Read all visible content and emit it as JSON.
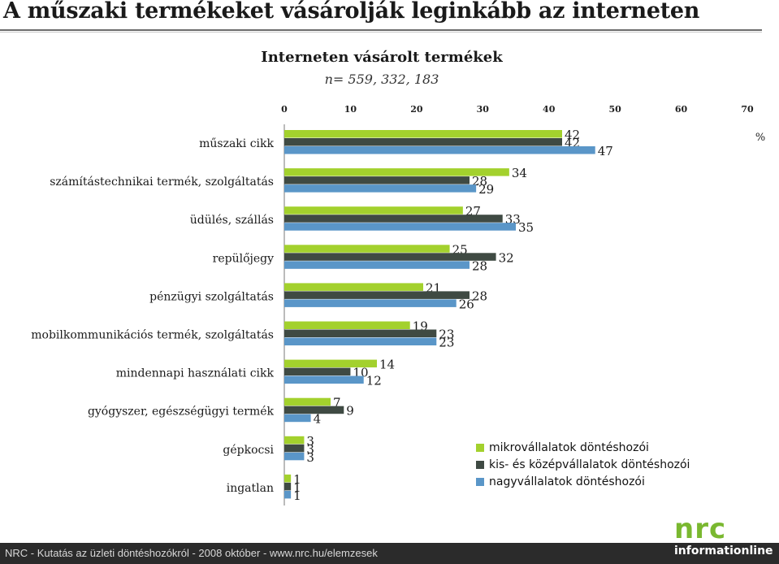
{
  "page": {
    "headline": "A műszaki termékeket vásárolják leginkább az interneten",
    "footer": "NRC - Kutatás az üzleti döntéshozókról - 2008 október - www.nrc.hu/elemzesek",
    "logo_top": "nrc",
    "logo_bottom": "informationline"
  },
  "chart_data": {
    "type": "bar",
    "orientation": "horizontal",
    "title": "Interneten vásárolt termékek",
    "subtitle": "n= 559, 332, 183",
    "unit_label": "%",
    "xlim": [
      0,
      70
    ],
    "xticks": [
      0,
      10,
      20,
      30,
      40,
      50,
      60,
      70
    ],
    "grid": false,
    "legend_position": "bottom-right",
    "categories": [
      "műszaki cikk",
      "számítástechnikai termék, szolgáltatás",
      "üdülés, szállás",
      "repülőjegy",
      "pénzügyi szolgáltatás",
      "mobilkommunikációs termék, szolgáltatás",
      "mindennapi használati cikk",
      "gyógyszer, egészségügyi termék",
      "gépkocsi",
      "ingatlan"
    ],
    "series": [
      {
        "name": "mikrovállalatok döntéshozói",
        "color": "#a3d12d",
        "values": [
          42,
          34,
          27,
          25,
          21,
          19,
          14,
          7,
          3,
          1
        ]
      },
      {
        "name": "kis- és középvállalatok döntéshozói",
        "color": "#3f4a43",
        "values": [
          42,
          28,
          33,
          32,
          28,
          23,
          10,
          9,
          3,
          1
        ]
      },
      {
        "name": "nagyvállalatok döntéshozói",
        "color": "#5a96c8",
        "values": [
          47,
          29,
          35,
          28,
          26,
          23,
          12,
          4,
          3,
          1
        ]
      }
    ]
  }
}
